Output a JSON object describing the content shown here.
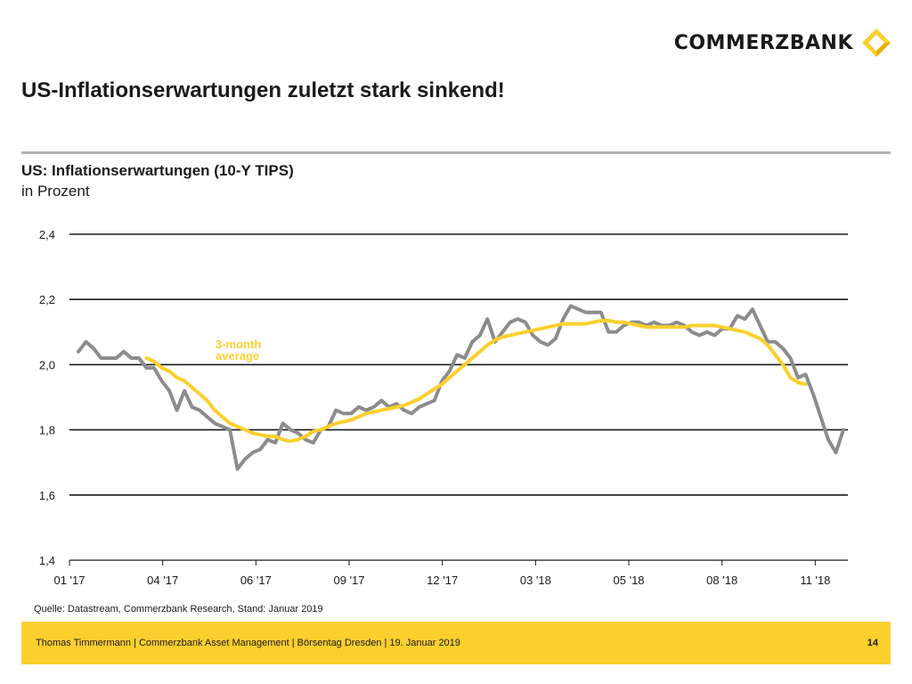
{
  "brand": {
    "name": "COMMERZBANK",
    "accent": "#fbcf2e"
  },
  "title": "US-Inflationserwartungen zuletzt stark sinkend!",
  "source": "Quelle: Datastream, Commerzbank Research, Stand: Januar 2019",
  "footer": {
    "text": "Thomas Timmermann | Commerzbank Asset Management | Börsentag Dresden | 19. Januar 2019",
    "page": "14"
  },
  "chart_data": {
    "type": "line",
    "title": "US: Inflationserwartungen (10-Y TIPS)",
    "subtitle": "in Prozent",
    "xlabel": "",
    "ylabel": "",
    "x_ticks": [
      "01 '17",
      "04 '17",
      "06 '17",
      "09 '17",
      "12 '17",
      "03 '18",
      "05 '18",
      "08 '18",
      "11 '18"
    ],
    "y_ticks": [
      "1,4",
      "1,6",
      "1,8",
      "2,0",
      "2,2",
      "2,4"
    ],
    "ylim": [
      1.4,
      2.4
    ],
    "grid": true,
    "annotation": "3-month average",
    "series": [
      {
        "name": "",
        "color": "#8c8c8c",
        "values": [
          2.04,
          2.07,
          2.05,
          2.02,
          2.02,
          2.02,
          2.04,
          2.02,
          2.02,
          1.99,
          1.99,
          1.95,
          1.92,
          1.86,
          1.92,
          1.87,
          1.86,
          1.84,
          1.82,
          1.81,
          1.8,
          1.68,
          1.71,
          1.73,
          1.74,
          1.77,
          1.76,
          1.82,
          1.8,
          1.79,
          1.77,
          1.76,
          1.8,
          1.81,
          1.86,
          1.85,
          1.85,
          1.87,
          1.86,
          1.87,
          1.89,
          1.87,
          1.88,
          1.86,
          1.85,
          1.87,
          1.88,
          1.89,
          1.95,
          1.98,
          2.03,
          2.02,
          2.07,
          2.09,
          2.14,
          2.07,
          2.1,
          2.13,
          2.14,
          2.13,
          2.09,
          2.07,
          2.06,
          2.08,
          2.14,
          2.18,
          2.17,
          2.16,
          2.16,
          2.16,
          2.1,
          2.1,
          2.12,
          2.13,
          2.13,
          2.12,
          2.13,
          2.12,
          2.12,
          2.13,
          2.12,
          2.1,
          2.09,
          2.1,
          2.09,
          2.11,
          2.11,
          2.15,
          2.14,
          2.17,
          2.12,
          2.07,
          2.07,
          2.05,
          2.02,
          1.96,
          1.97,
          1.91,
          1.84,
          1.77,
          1.73,
          1.8
        ]
      },
      {
        "name": "3-month average",
        "color": "#fbcf2e",
        "start_index": 9,
        "values": [
          2.02,
          2.01,
          1.99,
          1.98,
          1.96,
          1.95,
          1.93,
          1.91,
          1.89,
          1.86,
          1.84,
          1.82,
          1.81,
          1.8,
          1.79,
          1.785,
          1.78,
          1.78,
          1.77,
          1.765,
          1.77,
          1.78,
          1.795,
          1.8,
          1.81,
          1.82,
          1.825,
          1.83,
          1.84,
          1.85,
          1.855,
          1.86,
          1.865,
          1.87,
          1.875,
          1.885,
          1.895,
          1.91,
          1.925,
          1.94,
          1.96,
          1.98,
          2.0,
          2.02,
          2.04,
          2.06,
          2.075,
          2.085,
          2.09,
          2.095,
          2.1,
          2.105,
          2.11,
          2.115,
          2.12,
          2.125,
          2.125,
          2.125,
          2.125,
          2.13,
          2.135,
          2.135,
          2.13,
          2.13,
          2.125,
          2.12,
          2.115,
          2.115,
          2.115,
          2.115,
          2.115,
          2.115,
          2.12,
          2.12,
          2.12,
          2.12,
          2.115,
          2.11,
          2.105,
          2.1,
          2.09,
          2.08,
          2.06,
          2.03,
          2.0,
          1.96,
          1.945,
          1.94
        ]
      }
    ]
  }
}
